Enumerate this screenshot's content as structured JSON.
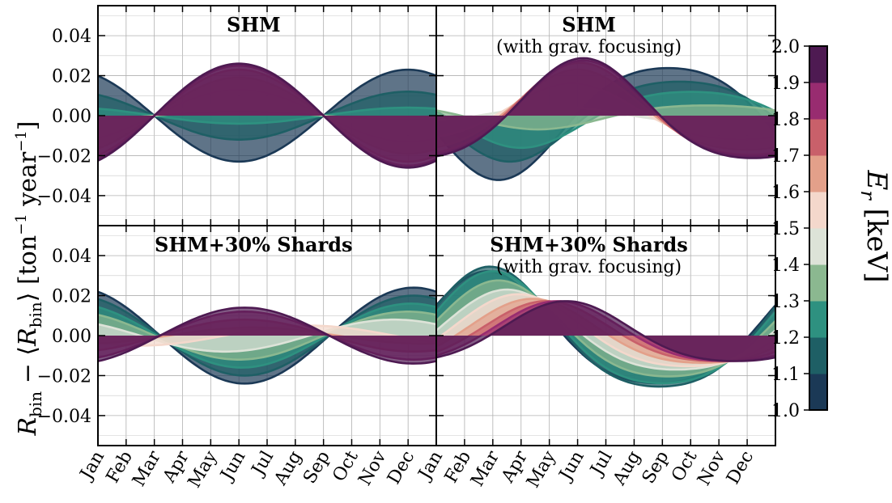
{
  "figure": {
    "ylabel": "R_bin − ⟨R_bin⟩ [ton⁻¹ year⁻¹]",
    "ylabel_parts": {
      "r": "R",
      "bin": "bin",
      "mid": " − ⟨",
      "r2": "R",
      "bin2": "bin",
      "rest": "⟩ [ton",
      "exp1": "−1",
      "year": " year",
      "exp2": "−1",
      "close": "]"
    },
    "yticks": [
      "0.04",
      "0.02",
      "0.00",
      "−0.02",
      "−0.04"
    ],
    "ytick_values": [
      0.04,
      0.02,
      0.0,
      -0.02,
      -0.04
    ],
    "ylim": [
      -0.055,
      0.055
    ],
    "months": [
      "Jan",
      "Feb",
      "Mar",
      "Apr",
      "May",
      "Jun",
      "Jul",
      "Aug",
      "Sep",
      "Oct",
      "Nov",
      "Dec"
    ],
    "colorbar": {
      "label": "E_r [keV]",
      "label_parts": {
        "e": "E",
        "sub": "r",
        "unit": " [keV]"
      },
      "ticks": [
        "2.0",
        "1.9",
        "1.8",
        "1.7",
        "1.6",
        "1.5",
        "1.4",
        "1.3",
        "1.2",
        "1.1",
        "1.0"
      ],
      "tick_values": [
        2.0,
        1.9,
        1.8,
        1.7,
        1.6,
        1.5,
        1.4,
        1.3,
        1.2,
        1.1,
        1.0
      ],
      "colors": [
        "#1b3956",
        "#1e5f65",
        "#2e9180",
        "#8bb890",
        "#dde3d8",
        "#f4d8cc",
        "#e3a08a",
        "#c9606a",
        "#982c70",
        "#4e1a52"
      ]
    }
  },
  "chart_data": [
    {
      "type": "area",
      "title": "SHM",
      "subtitle": "",
      "x_unit": "month (0 = Jan 1)",
      "bin_centers_keV": [
        1.05,
        1.15,
        1.25,
        1.35,
        1.45,
        1.55,
        1.65,
        1.75,
        1.85,
        1.95
      ],
      "model": "sinusoid",
      "x_zero_crossings": [
        "Mar",
        "Sep"
      ],
      "amplitudes": [
        -0.023,
        -0.012,
        -0.004,
        0.002,
        0.006,
        0.013,
        0.019,
        0.023,
        0.025,
        0.026
      ],
      "phase_peak_month": 5.0
    },
    {
      "type": "area",
      "title": "SHM",
      "subtitle": "(with grav. focusing)",
      "x_unit": "month (0 = Jan 1)",
      "bin_centers_keV": [
        1.05,
        1.15,
        1.25,
        1.35,
        1.45,
        1.55,
        1.65,
        1.75,
        1.85,
        1.95
      ],
      "model": "sinusoid",
      "amplitudes": [
        -0.028,
        -0.02,
        -0.014,
        -0.006,
        0.004,
        0.014,
        0.02,
        0.023,
        0.024,
        0.025
      ],
      "phase_peak_month": [
        2.2,
        2.6,
        3.0,
        3.6,
        4.2,
        4.8,
        5.0,
        5.1,
        5.2,
        5.2
      ]
    },
    {
      "type": "area",
      "title": "SHM+30% Shards",
      "subtitle": "",
      "x_unit": "month (0 = Jan 1)",
      "bin_centers_keV": [
        1.05,
        1.15,
        1.25,
        1.35,
        1.45,
        1.55,
        1.65,
        1.75,
        1.85,
        1.95
      ],
      "model": "sinusoid",
      "amplitudes": [
        0.024,
        0.02,
        0.016,
        0.012,
        0.008,
        0.005,
        0.004,
        0.008,
        0.012,
        0.014
      ],
      "phase_peak_month": [
        11.2,
        11.2,
        11.1,
        11.0,
        10.5,
        7.5,
        5.5,
        5.2,
        5.2,
        5.2
      ]
    },
    {
      "type": "area",
      "title": "SHM+30% Shards",
      "subtitle": "(with grav. focusing)",
      "x_unit": "month (0 = Jan 1)",
      "bin_centers_keV": [
        1.05,
        1.15,
        1.25,
        1.35,
        1.45,
        1.55,
        1.65,
        1.75,
        1.85,
        1.95
      ],
      "model": "sinusoid",
      "amplitudes": [
        0.028,
        0.03,
        0.028,
        0.024,
        0.02,
        0.018,
        0.016,
        0.015,
        0.015,
        0.015
      ],
      "phase_peak_month": [
        1.8,
        1.9,
        2.0,
        2.2,
        2.5,
        2.9,
        3.4,
        3.9,
        4.3,
        4.6
      ]
    }
  ]
}
